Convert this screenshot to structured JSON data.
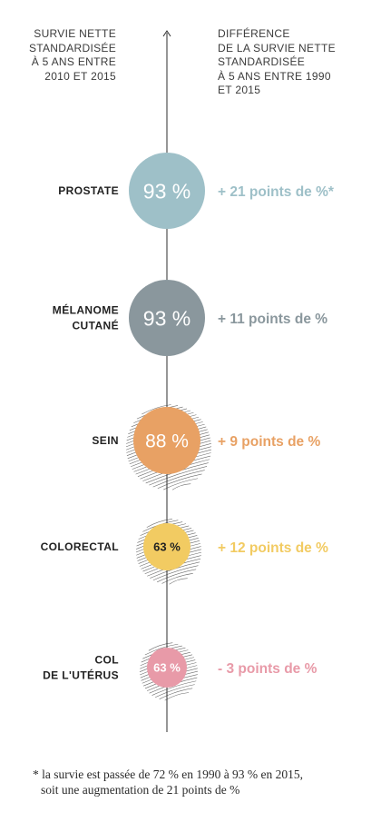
{
  "header_left": [
    "SURVIE NETTE",
    "STANDARDISÉE",
    "À 5 ANS ENTRE",
    "2010  ET 2015"
  ],
  "header_right": [
    "DIFFÉRENCE",
    "DE LA SURVIE NETTE",
    "STANDARDISÉE",
    "À 5 ANS ENTRE 1990",
    "ET 2015"
  ],
  "footnote": [
    "* la survie est passée de 72 % en 1990 à 93 % en 2015,",
    "soit une augmentation de 21 points de %"
  ],
  "chart_data": {
    "type": "bubble",
    "rows": [
      {
        "label": [
          "PROSTATE"
        ],
        "survival": 93,
        "value_label": "93 %",
        "difference_label": "+ 21 points de %*",
        "difference": 21,
        "color": "#9ec0c8",
        "text_color": "#ffffff",
        "hatch": false
      },
      {
        "label": [
          "MÉLANOME",
          "CUTANÉ"
        ],
        "survival": 93,
        "value_label": "93 %",
        "difference_label": "+ 11 points de %",
        "difference": 11,
        "color": "#8a979d",
        "text_color": "#ffffff",
        "hatch": false
      },
      {
        "label": [
          "SEIN"
        ],
        "survival": 88,
        "value_label": "88 %",
        "difference_label": "+ 9 points de %",
        "difference": 9,
        "color": "#e8a164",
        "text_color": "#ffffff",
        "hatch": true
      },
      {
        "label": [
          "COLORECTAL"
        ],
        "survival": 63,
        "value_label": "63 %",
        "difference_label": "+ 12 points de %",
        "difference": 12,
        "color": "#f2cb62",
        "text_color": "#222222",
        "hatch": true
      },
      {
        "label": [
          "COL",
          "DE L'UTÉRUS"
        ],
        "survival": 63,
        "value_label": "63 %",
        "difference_label": "- 3 points de %",
        "difference": -3,
        "color": "#e89aa8",
        "text_color": "#ffffff",
        "hatch": true
      }
    ]
  }
}
